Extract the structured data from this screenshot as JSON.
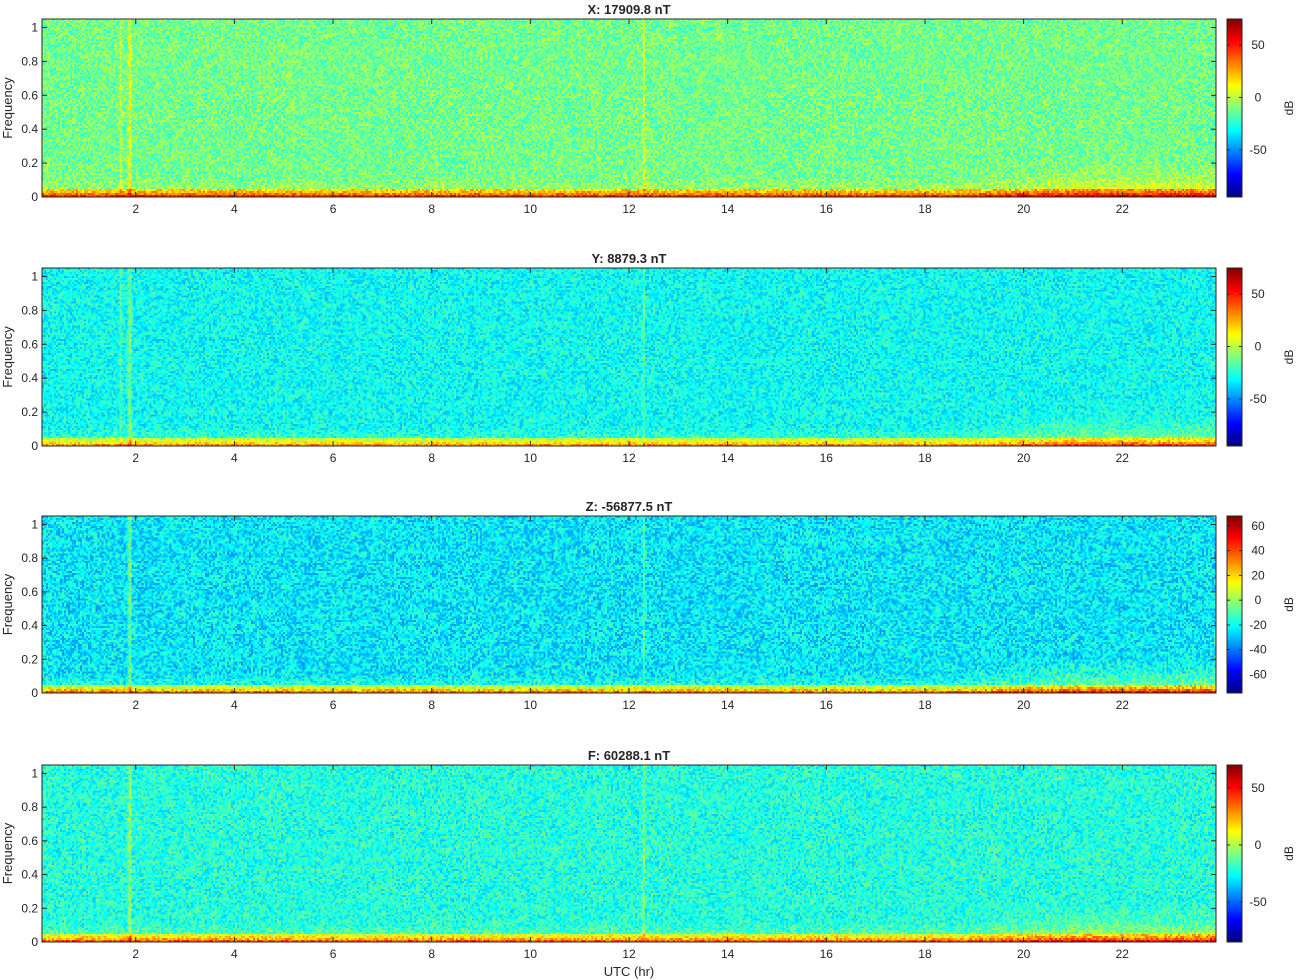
{
  "colormap": "jet",
  "colors": {
    "axis": "#262626",
    "background": "#ffffff"
  },
  "chart_data": [
    {
      "type": "heatmap",
      "title": "X: 17909.8 nT",
      "xlabel": "",
      "ylabel": "Frequency",
      "colorbar_label": "dB",
      "xlim": [
        0.1,
        23.9
      ],
      "ylim": [
        0,
        1.05
      ],
      "clim": [
        -95,
        75
      ],
      "xticks": [
        2,
        4,
        6,
        8,
        10,
        12,
        14,
        16,
        18,
        20,
        22
      ],
      "yticks": [
        0,
        0.2,
        0.4,
        0.6,
        0.8,
        1
      ],
      "cticks": [
        -50,
        0,
        50
      ],
      "background_level_db": -12,
      "spikes_utc_hr": [
        1.7,
        1.88,
        12.3
      ],
      "low_frequency_band": [
        0,
        0.05
      ]
    },
    {
      "type": "heatmap",
      "title": "Y: 8879.3 nT",
      "xlabel": "",
      "ylabel": "Frequency",
      "colorbar_label": "dB",
      "xlim": [
        0.1,
        23.9
      ],
      "ylim": [
        0,
        1.05
      ],
      "clim": [
        -95,
        75
      ],
      "xticks": [
        2,
        4,
        6,
        8,
        10,
        12,
        14,
        16,
        18,
        20,
        22
      ],
      "yticks": [
        0,
        0.2,
        0.4,
        0.6,
        0.8,
        1
      ],
      "cticks": [
        -50,
        0,
        50
      ],
      "background_level_db": -30,
      "spikes_utc_hr": [
        1.7,
        1.88,
        12.3
      ],
      "low_frequency_band": [
        0,
        0.05
      ]
    },
    {
      "type": "heatmap",
      "title": "Z: -56877.5 nT",
      "xlabel": "",
      "ylabel": "Frequency",
      "colorbar_label": "dB",
      "xlim": [
        0.1,
        23.9
      ],
      "ylim": [
        0,
        1.05
      ],
      "clim": [
        -75,
        68
      ],
      "xticks": [
        2,
        4,
        6,
        8,
        10,
        12,
        14,
        16,
        18,
        20,
        22
      ],
      "yticks": [
        0,
        0.2,
        0.4,
        0.6,
        0.8,
        1
      ],
      "cticks": [
        -60,
        -40,
        -20,
        0,
        20,
        40,
        60
      ],
      "background_level_db": -24,
      "spikes_utc_hr": [
        1.88,
        12.3
      ],
      "low_frequency_band": [
        0,
        0.05
      ]
    },
    {
      "type": "heatmap",
      "title": "F: 60288.1 nT",
      "xlabel": "UTC (hr)",
      "ylabel": "Frequency",
      "colorbar_label": "dB",
      "xlim": [
        0.1,
        23.9
      ],
      "ylim": [
        0,
        1.05
      ],
      "clim": [
        -85,
        70
      ],
      "xticks": [
        2,
        4,
        6,
        8,
        10,
        12,
        14,
        16,
        18,
        20,
        22
      ],
      "yticks": [
        0,
        0.2,
        0.4,
        0.6,
        0.8,
        1
      ],
      "cticks": [
        -50,
        0,
        50
      ],
      "background_level_db": -22,
      "spikes_utc_hr": [
        1.88,
        12.3
      ],
      "low_frequency_band": [
        0,
        0.05
      ]
    }
  ]
}
